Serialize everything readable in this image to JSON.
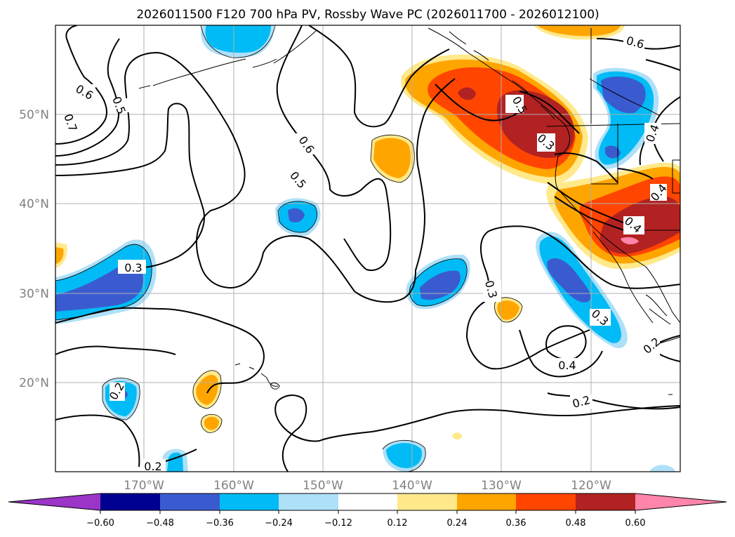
{
  "map": {
    "title": "2026011500 F120 700 hPa PV, Rossby Wave PC (2026011700 - 2026012100)",
    "lat_labels": [
      "50°N",
      "40°N",
      "30°N",
      "20°N"
    ],
    "lon_labels": [
      "170°W",
      "160°W",
      "150°W",
      "140°W",
      "130°W",
      "120°W"
    ],
    "contour_labels": [
      "0.6",
      "0.5",
      "0.7",
      "0.6",
      "0.5",
      "0.3",
      "0.3",
      "0.6",
      "0.5",
      "0.4",
      "0.4",
      "0.4",
      "0.3",
      "0.4",
      "0.3",
      "0.2",
      "0.2",
      "0.2",
      "0.2"
    ],
    "colorbar": {
      "ticks": [
        "−0.60",
        "−0.48",
        "−0.36",
        "−0.24",
        "−0.12",
        "0.12",
        "0.24",
        "0.36",
        "0.48",
        "0.60"
      ],
      "colors": [
        "#9a35c8",
        "#000090",
        "#3a5bd0",
        "#00bbf5",
        "#aee0f8",
        "#ffffff",
        "#ffe98a",
        "#ffa500",
        "#ff4500",
        "#b22222",
        "#ff85aa"
      ]
    },
    "colors": {
      "grid": "#b0b0b0",
      "contour": "#000000",
      "coast": "#000000"
    }
  }
}
